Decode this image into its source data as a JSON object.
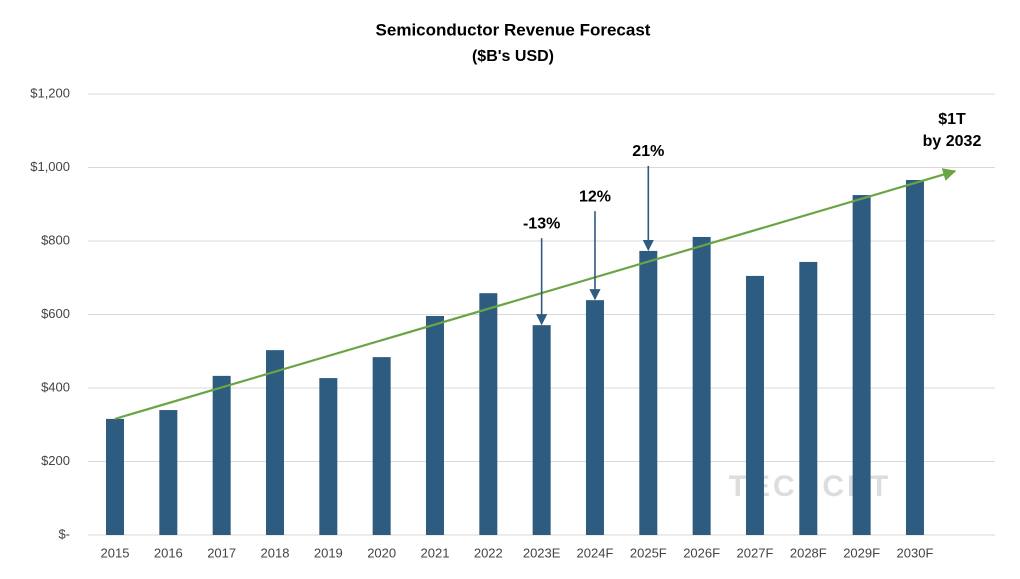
{
  "chart_data": {
    "type": "bar",
    "title": "Semiconductor Revenue Forecast",
    "subtitle": "($B's USD)",
    "categories": [
      "2015",
      "2016",
      "2017",
      "2018",
      "2019",
      "2020",
      "2021",
      "2022",
      "2023E",
      "2024F",
      "2025F",
      "2026F",
      "2027F",
      "2028F",
      "2029F",
      "2030F"
    ],
    "values": [
      316,
      340,
      433,
      503,
      427,
      484,
      596,
      658,
      571,
      639,
      773,
      811,
      705,
      743,
      925,
      966
    ],
    "color": "#2e5b80",
    "ylim": [
      0,
      1200
    ],
    "yticks": [
      {
        "value": 0,
        "label": "$-"
      },
      {
        "value": 200,
        "label": "$200"
      },
      {
        "value": 400,
        "label": "$400"
      },
      {
        "value": 600,
        "label": "$600"
      },
      {
        "value": 800,
        "label": "$800"
      },
      {
        "value": 1000,
        "label": "$1,000"
      },
      {
        "value": 1200,
        "label": "$1,200"
      }
    ],
    "grid": true,
    "trend": {
      "start": 316,
      "end": 990,
      "color": "#6aa545"
    },
    "annotations": [
      "-13%",
      "12%",
      "21%"
    ],
    "callout": [
      "$1T",
      "by 2032"
    ],
    "watermark": "TECHCET"
  }
}
